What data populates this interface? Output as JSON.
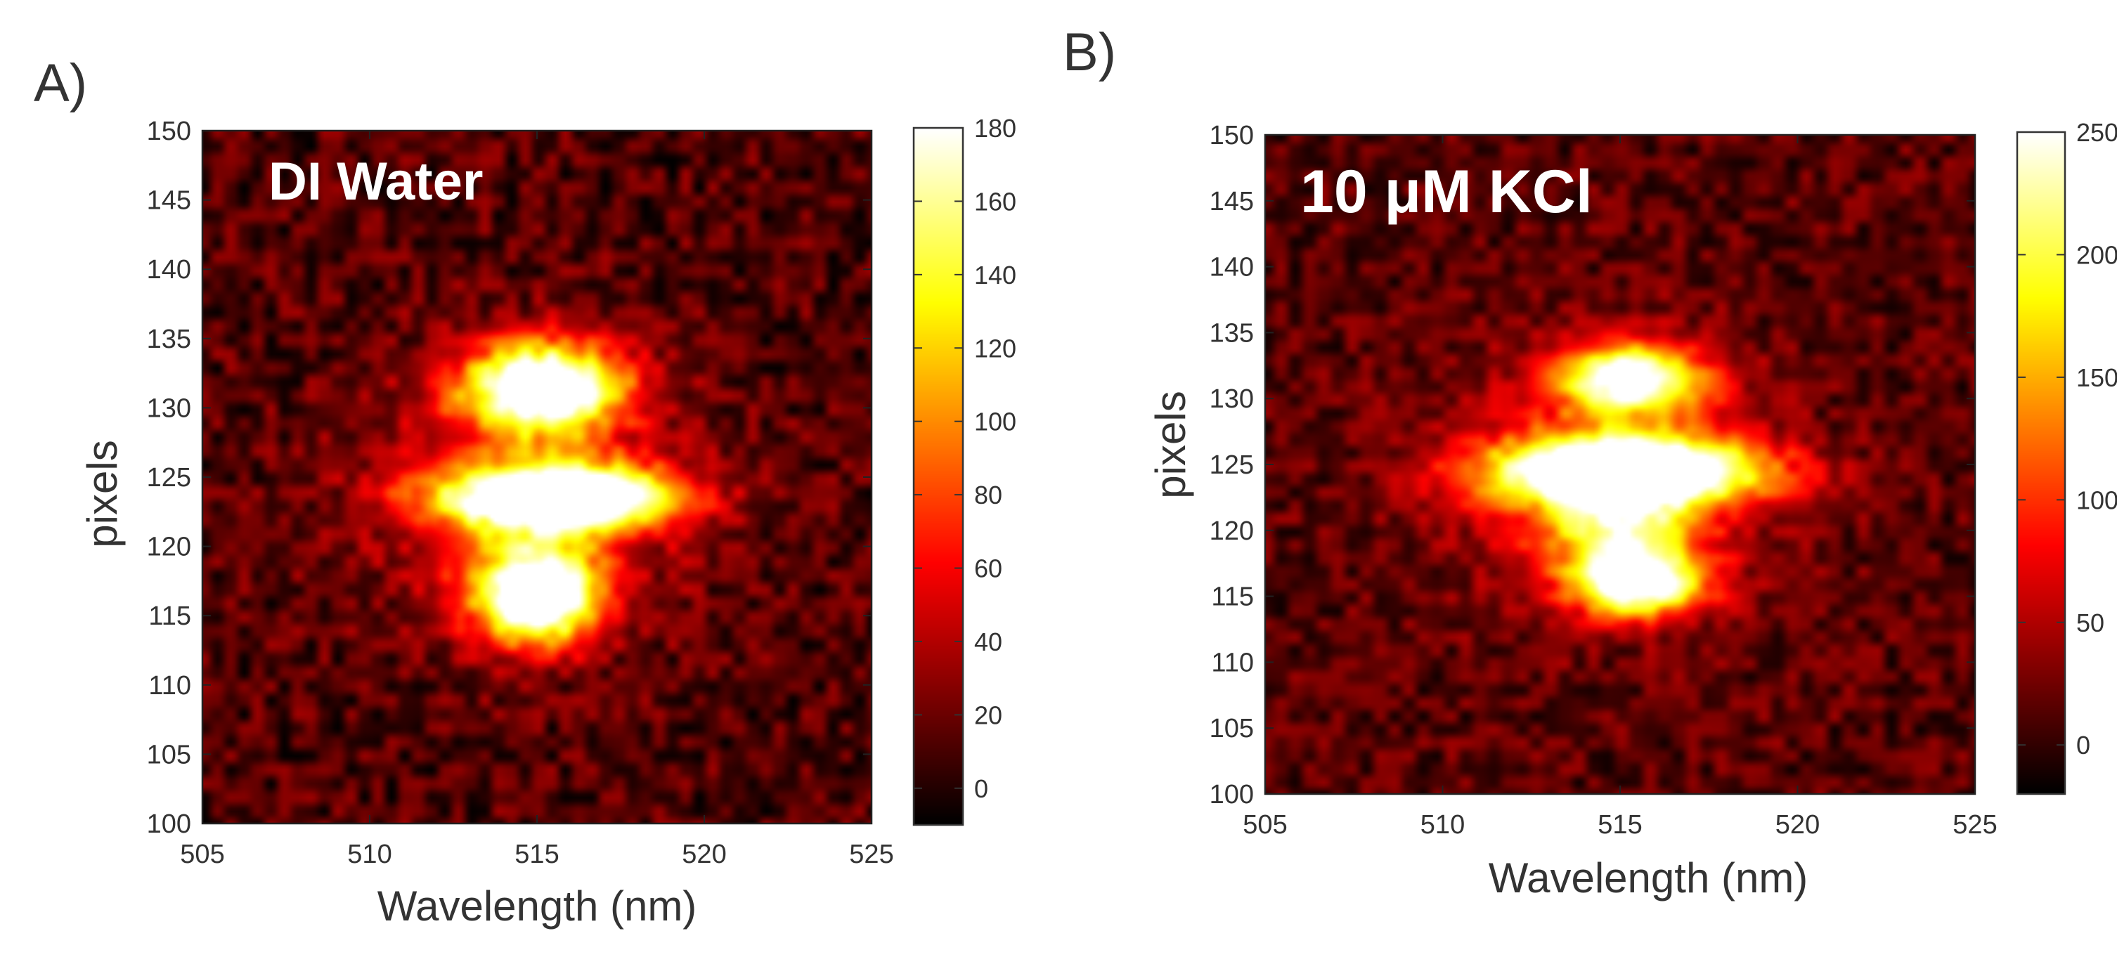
{
  "chart_data": [
    {
      "type": "heatmap",
      "panel_label": "A)",
      "annotation": "DI Water",
      "xlabel": "Wavelength (nm)",
      "ylabel": "pixels",
      "xlim": [
        505,
        525
      ],
      "ylim": [
        100,
        150
      ],
      "xticks": [
        505,
        510,
        515,
        520,
        525
      ],
      "yticks": [
        100,
        105,
        110,
        115,
        120,
        125,
        130,
        135,
        140,
        145,
        150
      ],
      "colorbar": {
        "range": [
          -10,
          180
        ],
        "ticks": [
          0,
          20,
          40,
          60,
          80,
          100,
          120,
          140,
          160,
          180
        ],
        "colormap": "hot"
      },
      "hotspots": [
        {
          "x": 515.2,
          "y": 131.5,
          "sx": 1.6,
          "sy": 2.2,
          "amp": 210
        },
        {
          "x": 515.6,
          "y": 123.5,
          "sx": 2.4,
          "sy": 1.6,
          "amp": 230
        },
        {
          "x": 515.0,
          "y": 116.5,
          "sx": 1.3,
          "sy": 2.4,
          "amp": 220
        },
        {
          "x": 514.6,
          "y": 124.0,
          "sx": 3.2,
          "sy": 6.5,
          "amp": 55
        }
      ],
      "noise_amplitude": 22,
      "background_level": 12
    },
    {
      "type": "heatmap",
      "panel_label": "B)",
      "annotation": "10 μM KCl",
      "xlabel": "Wavelength (nm)",
      "ylabel": "pixels",
      "xlim": [
        505,
        525
      ],
      "ylim": [
        100,
        150
      ],
      "xticks": [
        505,
        510,
        515,
        520,
        525
      ],
      "yticks": [
        100,
        105,
        110,
        115,
        120,
        125,
        130,
        135,
        140,
        145,
        150
      ],
      "colorbar": {
        "range": [
          -20,
          250
        ],
        "ticks": [
          0,
          50,
          100,
          150,
          200,
          250
        ],
        "colormap": "hot"
      },
      "hotspots": [
        {
          "x": 515.3,
          "y": 131.5,
          "sx": 1.4,
          "sy": 1.8,
          "amp": 250
        },
        {
          "x": 515.2,
          "y": 124.5,
          "sx": 2.6,
          "sy": 1.8,
          "amp": 330
        },
        {
          "x": 515.5,
          "y": 116.0,
          "sx": 1.3,
          "sy": 1.7,
          "amp": 270
        },
        {
          "x": 515.0,
          "y": 120.0,
          "sx": 1.4,
          "sy": 2.0,
          "amp": 150
        },
        {
          "x": 514.6,
          "y": 124.0,
          "sx": 3.0,
          "sy": 6.5,
          "amp": 75
        }
      ],
      "noise_amplitude": 28,
      "background_level": 14
    }
  ]
}
